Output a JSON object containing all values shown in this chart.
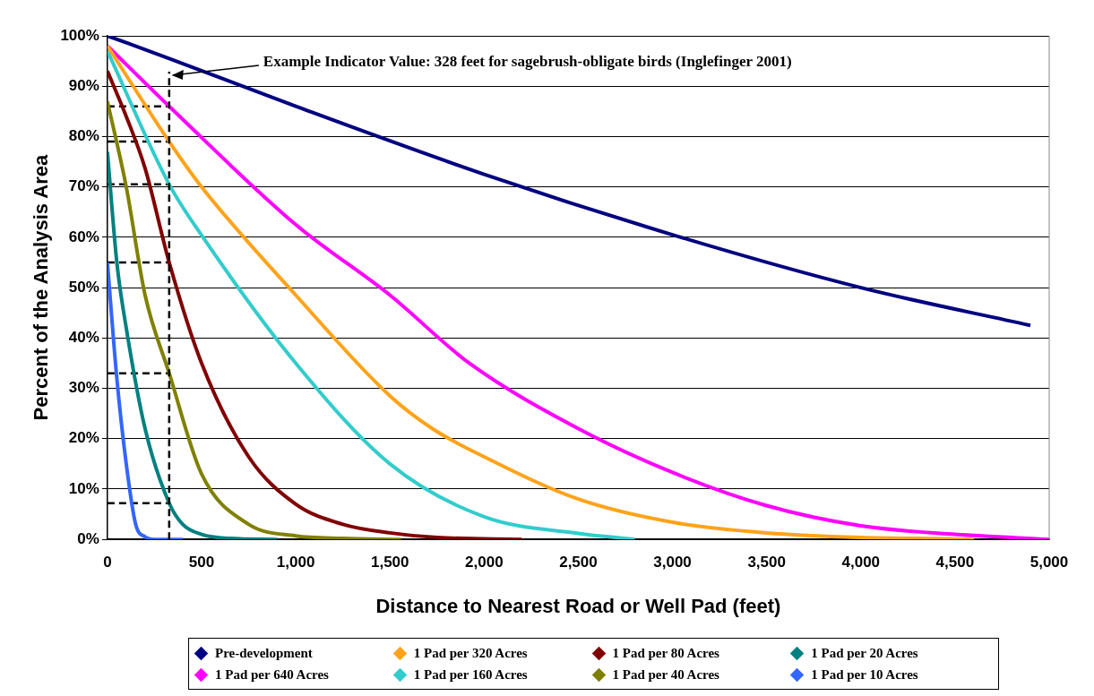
{
  "chart_data": {
    "type": "line",
    "xlabel": "Distance to Nearest Road or Well Pad (feet)",
    "ylabel": "Percent of the Analysis Area",
    "xlim": [
      0,
      5000
    ],
    "xticks": [
      0,
      500,
      {
        "value": 1000,
        "label": "1,000"
      },
      {
        "value": 1500,
        "label": "1,500"
      },
      {
        "value": 2000,
        "label": "2,000"
      },
      {
        "value": 2500,
        "label": "2,500"
      },
      {
        "value": 3000,
        "label": "3,000"
      },
      {
        "value": 3500,
        "label": "3,500"
      },
      {
        "value": 4000,
        "label": "4,000"
      },
      {
        "value": 4500,
        "label": "4,500"
      },
      {
        "value": 5000,
        "label": "5,000"
      }
    ],
    "ylim": [
      0,
      100
    ],
    "yticks": [
      {
        "value": 0,
        "label": "0%"
      },
      {
        "value": 10,
        "label": "10%"
      },
      {
        "value": 20,
        "label": "20%"
      },
      {
        "value": 30,
        "label": "30%"
      },
      {
        "value": 40,
        "label": "40%"
      },
      {
        "value": 50,
        "label": "50%"
      },
      {
        "value": 60,
        "label": "60%"
      },
      {
        "value": 70,
        "label": "70%"
      },
      {
        "value": 80,
        "label": "80%"
      },
      {
        "value": 90,
        "label": "90%"
      },
      {
        "value": 100,
        "label": "100%"
      }
    ],
    "grid": "y",
    "legend": "bottom",
    "marker": "none",
    "line_style": "solid",
    "series": [
      {
        "name": "Pre-development",
        "color": "#000080",
        "x": [
          0,
          328,
          1000,
          2000,
          3000,
          4000,
          4900
        ],
        "values": [
          100,
          95.5,
          86,
          72.5,
          60.5,
          50,
          42.5
        ]
      },
      {
        "name": "1 Pad per 320 Acres",
        "color": "#ffa31a",
        "x": [
          0,
          328,
          500,
          1000,
          1500,
          1725,
          2000,
          2500,
          3000,
          3500,
          4000,
          4500,
          4600
        ],
        "values": [
          98,
          79,
          70,
          48.5,
          28.5,
          22,
          16.4,
          8,
          3.4,
          1.3,
          0.4,
          0.1,
          0
        ]
      },
      {
        "name": "1 Pad per 80 Acres",
        "color": "#800000",
        "x": [
          0,
          100,
          200,
          328,
          500,
          750,
          1000,
          1250,
          1500,
          1750,
          2200
        ],
        "values": [
          93,
          84,
          73.7,
          55,
          35,
          16.4,
          7,
          3,
          1.3,
          0.4,
          0
        ]
      },
      {
        "name": "1 Pad per 20 Acres",
        "color": "#008080",
        "x": [
          0,
          50,
          100,
          200,
          328,
          400,
          500,
          650,
          900
        ],
        "values": [
          77,
          55,
          42,
          22,
          7.2,
          3,
          1,
          0.2,
          0
        ]
      },
      {
        "name": "1 Pad per 640 Acres",
        "color": "#ff00ff",
        "x": [
          0,
          328,
          1000,
          1500,
          1921,
          2500,
          3000,
          3500,
          4000,
          4500,
          5000
        ],
        "values": [
          98,
          86,
          62.5,
          48.5,
          35,
          22,
          13.3,
          6.7,
          2.7,
          1,
          0
        ]
      },
      {
        "name": "1 Pad per 160 Acres",
        "color": "#33cccc",
        "x": [
          0,
          328,
          500,
          1000,
          1500,
          2000,
          2500,
          2800
        ],
        "values": [
          97,
          70.5,
          60.4,
          35,
          15,
          4.5,
          1.2,
          0
        ]
      },
      {
        "name": "1 Pad per 40 Acres",
        "color": "#808000",
        "x": [
          0,
          100,
          200,
          328,
          500,
          750,
          1000,
          1250,
          1560
        ],
        "values": [
          87,
          70,
          48.5,
          33,
          13,
          3,
          0.7,
          0.2,
          0
        ]
      },
      {
        "name": "1 Pad per 10 Acres",
        "color": "#3366ff",
        "x": [
          0,
          50,
          100,
          150,
          200,
          250,
          400
        ],
        "values": [
          55,
          32,
          15,
          3,
          0.5,
          0,
          0
        ]
      },
      {
        "color": "#000000",
        "line_style": "dashed",
        "x": [
          0,
          328
        ],
        "values": [
          86,
          86
        ]
      },
      {
        "color": "#000000",
        "line_style": "dashed",
        "x": [
          0,
          328
        ],
        "values": [
          79,
          79
        ]
      },
      {
        "color": "#000000",
        "line_style": "dashed",
        "x": [
          0,
          328
        ],
        "values": [
          70.5,
          70.5
        ]
      },
      {
        "color": "#000000",
        "line_style": "dashed",
        "x": [
          0,
          328
        ],
        "values": [
          55,
          55
        ]
      },
      {
        "color": "#000000",
        "line_style": "dashed",
        "x": [
          0,
          328
        ],
        "values": [
          33,
          33
        ]
      },
      {
        "color": "#000000",
        "line_style": "dashed",
        "x": [
          0,
          328
        ],
        "values": [
          7.2,
          7.2
        ]
      }
    ],
    "ref_lines": [
      {
        "axis": "x",
        "value": 328,
        "label": "Example Indicator Value: 328 feet for sagebrush-obligate birds (Inglefinger 2001)",
        "line_style": "dashed",
        "color": "#000000"
      }
    ]
  }
}
